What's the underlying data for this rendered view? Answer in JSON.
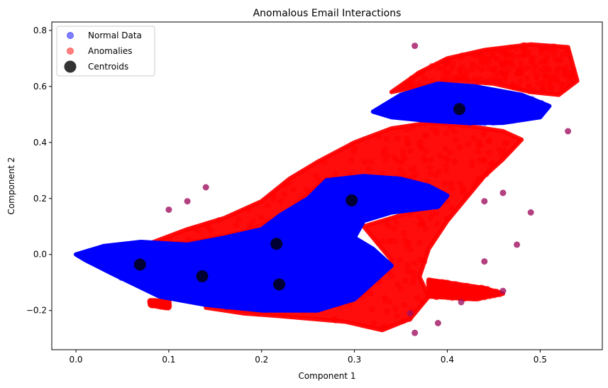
{
  "chart_data": {
    "type": "scatter",
    "title": "Anomalous Email Interactions",
    "xlabel": "Component 1",
    "ylabel": "Component 2",
    "xlim": [
      -0.026,
      0.567
    ],
    "ylim": [
      -0.34,
      0.83
    ],
    "xticks": [
      0.0,
      0.1,
      0.2,
      0.3,
      0.4,
      0.5
    ],
    "xtick_labels": [
      "0.0",
      "0.1",
      "0.2",
      "0.3",
      "0.4",
      "0.5"
    ],
    "yticks": [
      -0.2,
      0.0,
      0.2,
      0.4,
      0.6,
      0.8
    ],
    "ytick_labels": [
      "−0.2",
      "0.0",
      "0.2",
      "0.4",
      "0.6",
      "0.8"
    ],
    "grid": false,
    "legend_position": "top-left",
    "legend": [
      {
        "label": "Normal Data",
        "color": "#0000ff",
        "alpha": 0.5
      },
      {
        "label": "Anomalies",
        "color": "#ff0000",
        "alpha": 0.5
      },
      {
        "label": "Centroids",
        "color": "#000000",
        "alpha": 0.8
      }
    ],
    "series": [
      {
        "name": "Normal Data",
        "color": "#0000ff",
        "regions": [
          {
            "polygon": [
              [
                0.0,
                0.0
              ],
              [
                0.03,
                0.03
              ],
              [
                0.07,
                0.045
              ],
              [
                0.12,
                0.035
              ],
              [
                0.16,
                0.06
              ],
              [
                0.2,
                0.09
              ],
              [
                0.22,
                0.14
              ],
              [
                0.25,
                0.2
              ],
              [
                0.27,
                0.265
              ],
              [
                0.31,
                0.28
              ],
              [
                0.35,
                0.27
              ],
              [
                0.38,
                0.245
              ],
              [
                0.4,
                0.21
              ],
              [
                0.39,
                0.17
              ],
              [
                0.34,
                0.15
              ],
              [
                0.31,
                0.12
              ],
              [
                0.3,
                0.06
              ],
              [
                0.32,
                0.02
              ],
              [
                0.34,
                -0.04
              ],
              [
                0.32,
                -0.1
              ],
              [
                0.3,
                -0.16
              ],
              [
                0.26,
                -0.2
              ],
              [
                0.2,
                -0.2
              ],
              [
                0.14,
                -0.18
              ],
              [
                0.09,
                -0.15
              ],
              [
                0.04,
                -0.07
              ],
              [
                0.01,
                -0.02
              ]
            ]
          },
          {
            "polygon": [
              [
                0.32,
                0.51
              ],
              [
                0.35,
                0.57
              ],
              [
                0.39,
                0.61
              ],
              [
                0.43,
                0.6
              ],
              [
                0.48,
                0.57
              ],
              [
                0.51,
                0.53
              ],
              [
                0.5,
                0.49
              ],
              [
                0.46,
                0.47
              ],
              [
                0.42,
                0.47
              ],
              [
                0.37,
                0.48
              ],
              [
                0.34,
                0.49
              ]
            ]
          }
        ]
      },
      {
        "name": "Anomalies",
        "color": "#ff0000",
        "regions": [
          {
            "polygon": [
              [
                0.08,
                0.04
              ],
              [
                0.12,
                0.09
              ],
              [
                0.16,
                0.13
              ],
              [
                0.2,
                0.19
              ],
              [
                0.23,
                0.27
              ],
              [
                0.26,
                0.33
              ],
              [
                0.3,
                0.4
              ],
              [
                0.34,
                0.45
              ],
              [
                0.38,
                0.47
              ],
              [
                0.42,
                0.46
              ],
              [
                0.46,
                0.44
              ],
              [
                0.48,
                0.41
              ],
              [
                0.46,
                0.34
              ],
              [
                0.44,
                0.28
              ],
              [
                0.42,
                0.2
              ],
              [
                0.4,
                0.12
              ],
              [
                0.38,
                0.02
              ],
              [
                0.37,
                -0.08
              ],
              [
                0.38,
                -0.15
              ],
              [
                0.36,
                -0.23
              ],
              [
                0.33,
                -0.27
              ],
              [
                0.29,
                -0.24
              ],
              [
                0.22,
                -0.22
              ],
              [
                0.18,
                -0.21
              ],
              [
                0.16,
                -0.2
              ],
              [
                0.14,
                -0.19
              ],
              [
                0.18,
                -0.18
              ],
              [
                0.26,
                -0.2
              ],
              [
                0.31,
                -0.14
              ],
              [
                0.34,
                -0.02
              ],
              [
                0.31,
                0.1
              ],
              [
                0.35,
                0.14
              ],
              [
                0.4,
                0.19
              ],
              [
                0.36,
                0.27
              ],
              [
                0.27,
                0.27
              ],
              [
                0.22,
                0.13
              ],
              [
                0.18,
                0.08
              ],
              [
                0.12,
                0.04
              ]
            ]
          },
          {
            "polygon": [
              [
                0.34,
                0.58
              ],
              [
                0.37,
                0.65
              ],
              [
                0.4,
                0.7
              ],
              [
                0.44,
                0.73
              ],
              [
                0.49,
                0.75
              ],
              [
                0.53,
                0.74
              ],
              [
                0.54,
                0.62
              ],
              [
                0.52,
                0.57
              ],
              [
                0.49,
                0.58
              ],
              [
                0.45,
                0.61
              ],
              [
                0.41,
                0.62
              ],
              [
                0.37,
                0.6
              ]
            ]
          },
          {
            "polygon": [
              [
                0.08,
                -0.165
              ],
              [
                0.1,
                -0.17
              ],
              [
                0.1,
                -0.19
              ],
              [
                0.08,
                -0.18
              ]
            ]
          },
          {
            "polygon": [
              [
                0.38,
                -0.09
              ],
              [
                0.44,
                -0.12
              ],
              [
                0.46,
                -0.14
              ],
              [
                0.43,
                -0.16
              ],
              [
                0.38,
                -0.15
              ]
            ]
          }
        ]
      }
    ],
    "centroids": {
      "name": "Centroids",
      "x": [
        0.069,
        0.136,
        0.216,
        0.219,
        0.297,
        0.413
      ],
      "y": [
        -0.036,
        -0.078,
        0.038,
        -0.107,
        0.193,
        0.519
      ]
    }
  }
}
